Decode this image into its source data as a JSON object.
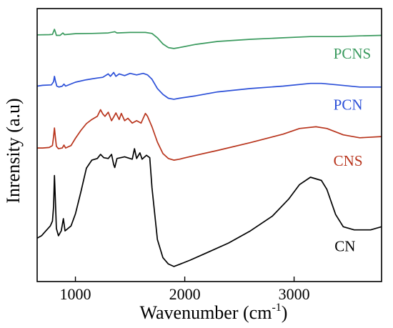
{
  "chart_data": {
    "type": "line",
    "xlabel_main": "Wavenumber (cm",
    "xlabel_sup": "-1",
    "xlabel_close": ")",
    "ylabel": "Inrensity (a.u)",
    "xlim": [
      650,
      3800
    ],
    "x_ticks": [
      1000,
      2000,
      3000
    ],
    "x_tick_labels": [
      "1000",
      "2000",
      "3000"
    ],
    "grid": false,
    "series": [
      {
        "name": "PCNS",
        "color": "#3a9a5e",
        "points": [
          [
            650,
            0.932
          ],
          [
            760,
            0.933
          ],
          [
            790,
            0.934
          ],
          [
            808,
            0.955
          ],
          [
            816,
            0.945
          ],
          [
            826,
            0.93
          ],
          [
            860,
            0.93
          ],
          [
            885,
            0.94
          ],
          [
            900,
            0.933
          ],
          [
            1000,
            0.937
          ],
          [
            1150,
            0.938
          ],
          [
            1300,
            0.94
          ],
          [
            1360,
            0.945
          ],
          [
            1380,
            0.94
          ],
          [
            1500,
            0.942
          ],
          [
            1640,
            0.942
          ],
          [
            1700,
            0.938
          ],
          [
            1750,
            0.92
          ],
          [
            1800,
            0.895
          ],
          [
            1850,
            0.88
          ],
          [
            1900,
            0.876
          ],
          [
            1950,
            0.88
          ],
          [
            2100,
            0.893
          ],
          [
            2300,
            0.905
          ],
          [
            2600,
            0.914
          ],
          [
            2900,
            0.92
          ],
          [
            3150,
            0.925
          ],
          [
            3400,
            0.925
          ],
          [
            3600,
            0.928
          ],
          [
            3800,
            0.93
          ]
        ]
      },
      {
        "name": "PCN",
        "color": "#2b4fd8",
        "points": [
          [
            650,
            0.722
          ],
          [
            700,
            0.725
          ],
          [
            780,
            0.727
          ],
          [
            800,
            0.74
          ],
          [
            808,
            0.762
          ],
          [
            816,
            0.745
          ],
          [
            830,
            0.722
          ],
          [
            850,
            0.718
          ],
          [
            880,
            0.722
          ],
          [
            895,
            0.73
          ],
          [
            910,
            0.722
          ],
          [
            1000,
            0.738
          ],
          [
            1100,
            0.748
          ],
          [
            1200,
            0.755
          ],
          [
            1250,
            0.758
          ],
          [
            1300,
            0.772
          ],
          [
            1320,
            0.762
          ],
          [
            1350,
            0.778
          ],
          [
            1370,
            0.762
          ],
          [
            1400,
            0.772
          ],
          [
            1450,
            0.765
          ],
          [
            1500,
            0.774
          ],
          [
            1560,
            0.768
          ],
          [
            1620,
            0.774
          ],
          [
            1660,
            0.768
          ],
          [
            1700,
            0.75
          ],
          [
            1750,
            0.712
          ],
          [
            1800,
            0.688
          ],
          [
            1850,
            0.672
          ],
          [
            1900,
            0.668
          ],
          [
            1950,
            0.672
          ],
          [
            2100,
            0.682
          ],
          [
            2300,
            0.698
          ],
          [
            2600,
            0.712
          ],
          [
            2900,
            0.722
          ],
          [
            3150,
            0.733
          ],
          [
            3250,
            0.733
          ],
          [
            3400,
            0.727
          ],
          [
            3600,
            0.718
          ],
          [
            3800,
            0.718
          ]
        ]
      },
      {
        "name": "CNS",
        "color": "#b8341c",
        "points": [
          [
            650,
            0.468
          ],
          [
            700,
            0.468
          ],
          [
            760,
            0.47
          ],
          [
            790,
            0.478
          ],
          [
            800,
            0.515
          ],
          [
            808,
            0.55
          ],
          [
            816,
            0.515
          ],
          [
            826,
            0.475
          ],
          [
            845,
            0.465
          ],
          [
            880,
            0.468
          ],
          [
            895,
            0.48
          ],
          [
            910,
            0.468
          ],
          [
            960,
            0.478
          ],
          [
            1000,
            0.508
          ],
          [
            1050,
            0.54
          ],
          [
            1100,
            0.568
          ],
          [
            1150,
            0.585
          ],
          [
            1200,
            0.598
          ],
          [
            1230,
            0.625
          ],
          [
            1250,
            0.608
          ],
          [
            1270,
            0.598
          ],
          [
            1300,
            0.615
          ],
          [
            1330,
            0.58
          ],
          [
            1350,
            0.595
          ],
          [
            1370,
            0.612
          ],
          [
            1400,
            0.585
          ],
          [
            1420,
            0.61
          ],
          [
            1450,
            0.58
          ],
          [
            1480,
            0.59
          ],
          [
            1520,
            0.57
          ],
          [
            1560,
            0.58
          ],
          [
            1600,
            0.57
          ],
          [
            1640,
            0.61
          ],
          [
            1660,
            0.598
          ],
          [
            1700,
            0.555
          ],
          [
            1750,
            0.492
          ],
          [
            1800,
            0.445
          ],
          [
            1850,
            0.425
          ],
          [
            1900,
            0.418
          ],
          [
            1950,
            0.422
          ],
          [
            2100,
            0.438
          ],
          [
            2300,
            0.458
          ],
          [
            2600,
            0.49
          ],
          [
            2900,
            0.525
          ],
          [
            3050,
            0.548
          ],
          [
            3200,
            0.555
          ],
          [
            3300,
            0.548
          ],
          [
            3450,
            0.522
          ],
          [
            3600,
            0.51
          ],
          [
            3800,
            0.515
          ]
        ]
      },
      {
        "name": "CN",
        "color": "#000000",
        "points": [
          [
            650,
            0.098
          ],
          [
            690,
            0.108
          ],
          [
            730,
            0.128
          ],
          [
            770,
            0.148
          ],
          [
            790,
            0.168
          ],
          [
            800,
            0.228
          ],
          [
            808,
            0.355
          ],
          [
            816,
            0.262
          ],
          [
            826,
            0.138
          ],
          [
            845,
            0.108
          ],
          [
            870,
            0.128
          ],
          [
            890,
            0.178
          ],
          [
            905,
            0.128
          ],
          [
            960,
            0.148
          ],
          [
            1000,
            0.198
          ],
          [
            1050,
            0.288
          ],
          [
            1100,
            0.385
          ],
          [
            1150,
            0.418
          ],
          [
            1200,
            0.425
          ],
          [
            1230,
            0.442
          ],
          [
            1260,
            0.428
          ],
          [
            1300,
            0.425
          ],
          [
            1330,
            0.442
          ],
          [
            1350,
            0.4
          ],
          [
            1360,
            0.388
          ],
          [
            1380,
            0.425
          ],
          [
            1450,
            0.432
          ],
          [
            1520,
            0.422
          ],
          [
            1540,
            0.465
          ],
          [
            1560,
            0.425
          ],
          [
            1590,
            0.448
          ],
          [
            1610,
            0.422
          ],
          [
            1650,
            0.438
          ],
          [
            1680,
            0.428
          ],
          [
            1700,
            0.305
          ],
          [
            1750,
            0.092
          ],
          [
            1800,
            0.018
          ],
          [
            1850,
            -0.008
          ],
          [
            1900,
            -0.018
          ],
          [
            1950,
            -0.01
          ],
          [
            2050,
            0.008
          ],
          [
            2200,
            0.038
          ],
          [
            2400,
            0.078
          ],
          [
            2600,
            0.128
          ],
          [
            2800,
            0.188
          ],
          [
            2950,
            0.258
          ],
          [
            3050,
            0.318
          ],
          [
            3150,
            0.348
          ],
          [
            3250,
            0.335
          ],
          [
            3300,
            0.298
          ],
          [
            3380,
            0.195
          ],
          [
            3450,
            0.145
          ],
          [
            3550,
            0.132
          ],
          [
            3700,
            0.132
          ],
          [
            3800,
            0.145
          ]
        ]
      }
    ],
    "ylim": [
      -0.08,
      1.04
    ]
  }
}
